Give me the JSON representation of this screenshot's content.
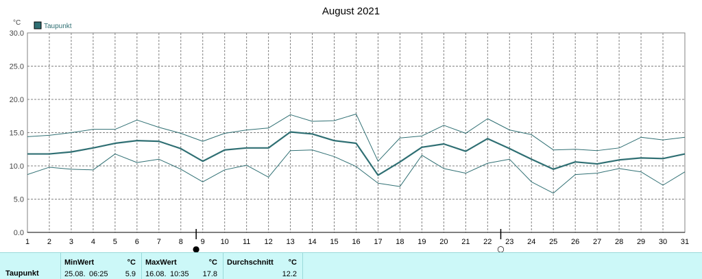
{
  "chart_data": {
    "type": "line",
    "title": "August 2021",
    "unit": "°C",
    "x": [
      1,
      2,
      3,
      4,
      5,
      6,
      7,
      8,
      9,
      10,
      11,
      12,
      13,
      14,
      15,
      16,
      17,
      18,
      19,
      20,
      21,
      22,
      23,
      24,
      25,
      26,
      27,
      28,
      29,
      30,
      31
    ],
    "ylim": [
      0,
      30
    ],
    "yticks": [
      "0.0",
      "5.0",
      "10.0",
      "15.0",
      "20.0",
      "25.0",
      "30.0"
    ],
    "grid": true,
    "legend_placement": "top-left",
    "legend": "Taupunkt",
    "series": [
      {
        "name": "Taupunkt",
        "role": "mean",
        "values": [
          11.8,
          11.8,
          12.1,
          12.7,
          13.4,
          13.8,
          13.7,
          12.6,
          10.7,
          12.4,
          12.7,
          12.7,
          15.1,
          14.8,
          13.8,
          13.4,
          8.6,
          10.6,
          12.8,
          13.3,
          12.2,
          14.1,
          12.6,
          11.0,
          9.5,
          10.6,
          10.3,
          10.9,
          11.2,
          11.1,
          11.8
        ]
      },
      {
        "role": "max",
        "values": [
          14.4,
          14.6,
          15.0,
          15.5,
          15.5,
          16.9,
          15.8,
          14.9,
          13.7,
          14.9,
          15.4,
          15.7,
          17.7,
          16.7,
          16.8,
          17.8,
          10.7,
          14.2,
          14.5,
          16.1,
          14.9,
          17.1,
          15.4,
          14.7,
          12.4,
          12.5,
          12.3,
          12.7,
          14.3,
          13.9,
          14.3
        ]
      },
      {
        "role": "min",
        "values": [
          8.7,
          9.8,
          9.5,
          9.4,
          11.8,
          10.5,
          11.0,
          9.5,
          7.6,
          9.4,
          10.1,
          8.3,
          12.3,
          12.4,
          11.4,
          9.9,
          7.4,
          6.9,
          11.6,
          9.6,
          8.9,
          10.4,
          11.0,
          7.6,
          5.9,
          8.7,
          8.9,
          9.6,
          9.1,
          7.1,
          9.1
        ]
      }
    ],
    "moon_markers": [
      {
        "day": 8.7,
        "symbol": "●"
      },
      {
        "day": 22.6,
        "symbol": "○"
      }
    ]
  },
  "colors": {
    "series": "#2f6f73",
    "grid": "#808080",
    "stats_bg": "#ccf8f8"
  },
  "stats": {
    "row_label": "Taupunkt",
    "min_label": "MinWert",
    "min_unit": "°C",
    "min_date": "25.08.",
    "min_time": "06:25",
    "min_value": "5.9",
    "max_label": "MaxWert",
    "max_unit": "°C",
    "max_date": "16.08.",
    "max_time": "10:35",
    "max_value": "17.8",
    "avg_label": "Durchschnitt",
    "avg_unit": "°C",
    "avg_value": "12.2"
  }
}
